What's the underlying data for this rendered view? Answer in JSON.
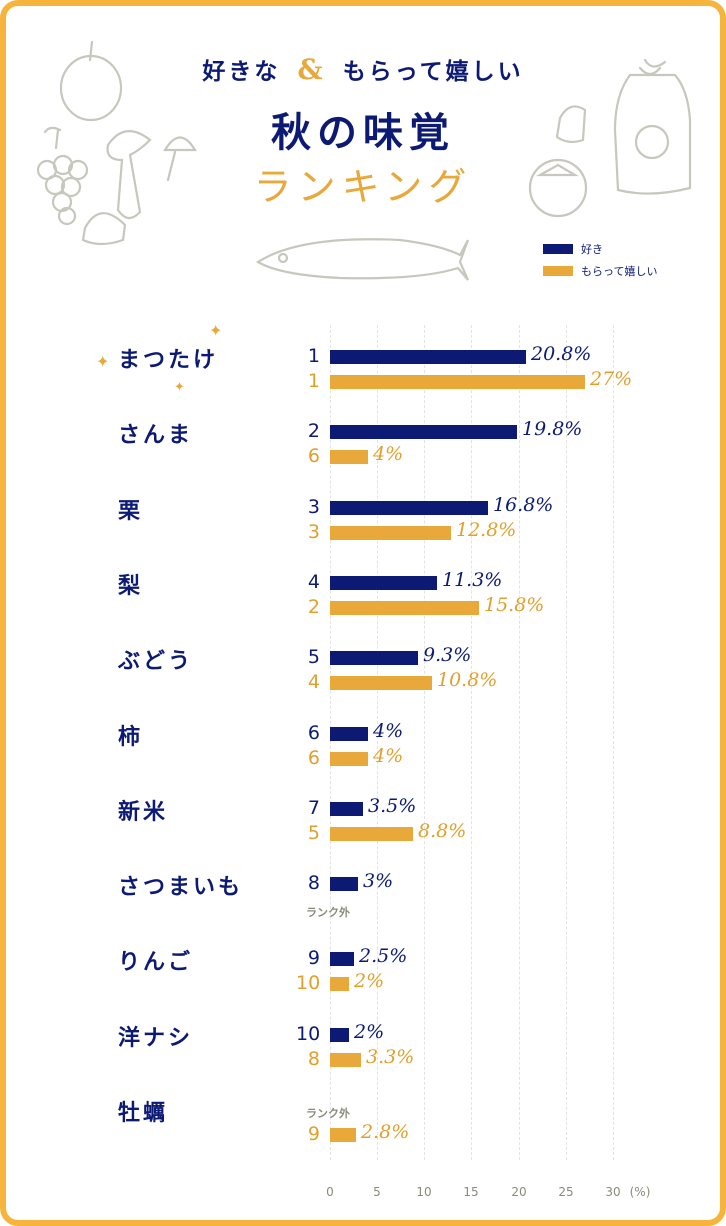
{
  "title": {
    "line1_a": "好きな",
    "line1_amp": "&",
    "line1_b": "もらって嬉しい",
    "line2": "秋の味覚",
    "line3": "ランキング"
  },
  "legend": {
    "items": [
      {
        "label": "好き",
        "color": "#0c1a73"
      },
      {
        "label": "もらって嬉しい",
        "color": "#e8a83a"
      }
    ]
  },
  "colors": {
    "border": "#f7b43c",
    "navy": "#0c1a73",
    "gold": "#e8a83a",
    "rank_gold": "#e1a02c"
  },
  "axis": {
    "ticks": [
      "0",
      "5",
      "10",
      "15",
      "20",
      "25",
      "30"
    ],
    "unit": "(%)",
    "out_of_rank": "ランク外"
  },
  "chart_data": {
    "type": "bar",
    "orientation": "horizontal",
    "title": "好きな & もらって嬉しい 秋の味覚ランキング",
    "xlabel": "(%)",
    "xlim": [
      0,
      30
    ],
    "grid": true,
    "legend_position": "top-right",
    "categories": [
      "まつたけ",
      "さんま",
      "栗",
      "梨",
      "ぶどう",
      "柿",
      "新米",
      "さつまいも",
      "りんご",
      "洋ナシ",
      "牡蠣"
    ],
    "series": [
      {
        "name": "好き",
        "ranks": [
          "1",
          "2",
          "3",
          "4",
          "5",
          "6",
          "7",
          "8",
          "9",
          "10",
          null
        ],
        "values": [
          20.8,
          19.8,
          16.8,
          11.3,
          9.3,
          4,
          3.5,
          3,
          2.5,
          2,
          null
        ],
        "labels": [
          "20.8%",
          "19.8%",
          "16.8%",
          "11.3%",
          "9.3%",
          "4%",
          "3.5%",
          "3%",
          "2.5%",
          "2%",
          null
        ]
      },
      {
        "name": "もらって嬉しい",
        "ranks": [
          "1",
          "6",
          "3",
          "2",
          "4",
          "6",
          "5",
          null,
          "10",
          "8",
          "9"
        ],
        "values": [
          27,
          4,
          12.8,
          15.8,
          10.8,
          4,
          8.8,
          null,
          2,
          3.3,
          2.8
        ],
        "labels": [
          "27%",
          "4%",
          "12.8%",
          "15.8%",
          "10.8%",
          "4%",
          "8.8%",
          null,
          "2%",
          "3.3%",
          "2.8%"
        ]
      }
    ]
  }
}
